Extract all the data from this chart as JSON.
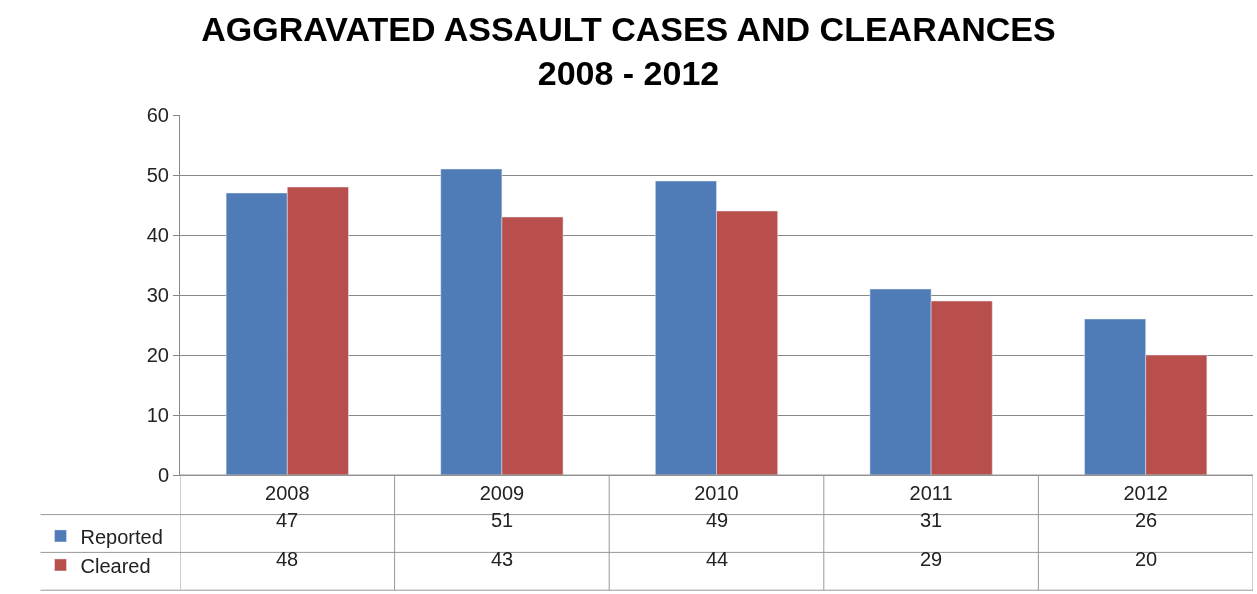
{
  "chart_data": {
    "type": "bar",
    "title": "AGGRAVATED ASSAULT CASES AND CLEARANCES\n2008 - 2012",
    "categories": [
      "2008",
      "2009",
      "2010",
      "2011",
      "2012"
    ],
    "series": [
      {
        "name": "Reported",
        "color": "#4f7bb7",
        "values": [
          47,
          51,
          49,
          31,
          26
        ]
      },
      {
        "name": "Cleared",
        "color": "#b84f4c",
        "values": [
          48,
          43,
          44,
          29,
          20
        ]
      }
    ],
    "ylim": [
      0,
      60
    ],
    "yticks": [
      0,
      10,
      20,
      30,
      40,
      50,
      60
    ],
    "grid": "y",
    "legend": "bottom left",
    "data_labels": true
  }
}
